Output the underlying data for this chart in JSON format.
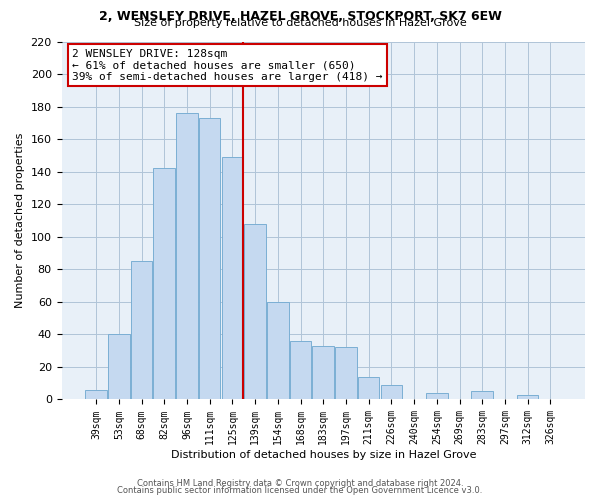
{
  "title": "2, WENSLEY DRIVE, HAZEL GROVE, STOCKPORT, SK7 6EW",
  "subtitle": "Size of property relative to detached houses in Hazel Grove",
  "xlabel": "Distribution of detached houses by size in Hazel Grove",
  "ylabel": "Number of detached properties",
  "bar_labels": [
    "39sqm",
    "53sqm",
    "68sqm",
    "82sqm",
    "96sqm",
    "111sqm",
    "125sqm",
    "139sqm",
    "154sqm",
    "168sqm",
    "183sqm",
    "197sqm",
    "211sqm",
    "226sqm",
    "240sqm",
    "254sqm",
    "269sqm",
    "283sqm",
    "297sqm",
    "312sqm",
    "326sqm"
  ],
  "bar_values": [
    6,
    40,
    85,
    142,
    176,
    173,
    149,
    108,
    60,
    36,
    33,
    32,
    14,
    9,
    0,
    4,
    0,
    5,
    0,
    3,
    0
  ],
  "bar_color": "#c5d9f0",
  "bar_edge_color": "#7bafd4",
  "highlight_index": 6,
  "highlight_line_color": "#cc0000",
  "annotation_title": "2 WENSLEY DRIVE: 128sqm",
  "annotation_line1": "← 61% of detached houses are smaller (650)",
  "annotation_line2": "39% of semi-detached houses are larger (418) →",
  "annotation_box_color": "#ffffff",
  "annotation_box_edge": "#cc0000",
  "ylim": [
    0,
    220
  ],
  "yticks": [
    0,
    20,
    40,
    60,
    80,
    100,
    120,
    140,
    160,
    180,
    200,
    220
  ],
  "footer_line1": "Contains HM Land Registry data © Crown copyright and database right 2024.",
  "footer_line2": "Contains public sector information licensed under the Open Government Licence v3.0.",
  "background_color": "#ffffff",
  "plot_bg_color": "#e8f0f8",
  "grid_color": "#b0c4d8"
}
